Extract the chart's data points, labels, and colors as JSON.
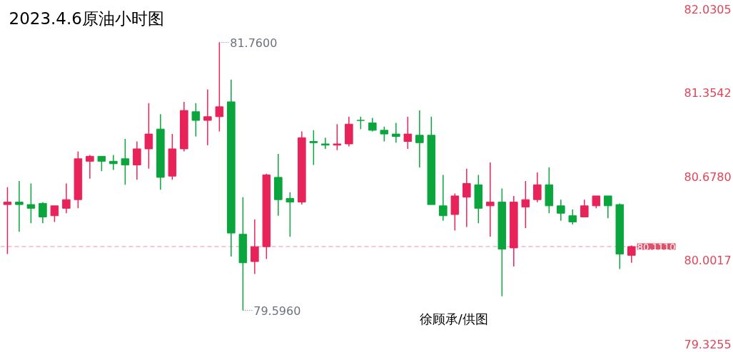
{
  "chart_data": {
    "type": "candlestick",
    "title": "2023.4.6原油小时图",
    "categories": [
      null,
      null,
      null,
      null,
      null,
      null,
      null,
      null,
      null,
      null,
      null,
      null,
      null,
      null,
      null,
      null,
      null,
      null,
      null,
      null,
      null,
      null,
      null,
      null,
      null,
      null,
      null,
      null,
      null,
      null,
      null,
      null,
      null,
      null,
      null,
      null,
      null,
      null,
      null,
      null,
      null,
      null,
      null,
      null,
      null,
      null,
      null,
      null,
      null,
      null,
      null,
      null,
      null,
      null
    ],
    "ohlc": [
      [
        80.45,
        80.59,
        80.05,
        80.47
      ],
      [
        80.47,
        80.64,
        80.23,
        80.45
      ],
      [
        80.45,
        80.62,
        80.3,
        80.42
      ],
      [
        80.46,
        80.47,
        80.3,
        80.35
      ],
      [
        80.36,
        80.44,
        80.31,
        80.44
      ],
      [
        80.42,
        80.62,
        80.38,
        80.49
      ],
      [
        80.49,
        80.88,
        80.42,
        80.82
      ],
      [
        80.8,
        80.85,
        80.66,
        80.84
      ],
      [
        80.84,
        80.84,
        80.72,
        80.8
      ],
      [
        80.8,
        80.85,
        80.73,
        80.78
      ],
      [
        80.82,
        80.98,
        80.61,
        80.77
      ],
      [
        80.77,
        80.96,
        80.65,
        80.9
      ],
      [
        80.9,
        81.27,
        80.74,
        81.02
      ],
      [
        81.06,
        81.18,
        80.57,
        80.67
      ],
      [
        80.68,
        81.02,
        80.65,
        80.9
      ],
      [
        80.9,
        81.28,
        80.88,
        81.21
      ],
      [
        81.2,
        81.27,
        81.0,
        81.13
      ],
      [
        81.13,
        81.38,
        80.93,
        81.16
      ],
      [
        81.16,
        81.76,
        81.04,
        81.24
      ],
      [
        81.28,
        81.46,
        80.03,
        80.22
      ],
      [
        80.21,
        80.51,
        79.596,
        79.98
      ],
      [
        79.99,
        80.33,
        79.89,
        80.11
      ],
      [
        80.11,
        80.7,
        80.01,
        80.69
      ],
      [
        80.67,
        80.86,
        80.36,
        80.49
      ],
      [
        80.5,
        80.55,
        80.19,
        80.47
      ],
      [
        80.47,
        81.04,
        80.45,
        80.99
      ],
      [
        80.96,
        81.05,
        80.77,
        80.95
      ],
      [
        80.94,
        80.99,
        80.9,
        80.93
      ],
      [
        80.93,
        81.1,
        80.89,
        80.94
      ],
      [
        80.94,
        81.16,
        80.92,
        81.1
      ],
      [
        81.13,
        81.16,
        81.06,
        81.13
      ],
      [
        81.11,
        81.15,
        81.04,
        81.05
      ],
      [
        81.05,
        81.08,
        80.96,
        81.02
      ],
      [
        81.02,
        81.11,
        80.95,
        81.0
      ],
      [
        80.96,
        81.16,
        80.9,
        81.02
      ],
      [
        81.01,
        81.21,
        80.75,
        80.95
      ],
      [
        81.01,
        81.16,
        80.45,
        80.45
      ],
      [
        80.44,
        80.69,
        80.32,
        80.36
      ],
      [
        80.37,
        80.54,
        80.24,
        80.52
      ],
      [
        80.51,
        80.74,
        80.27,
        80.62
      ],
      [
        80.61,
        80.69,
        80.3,
        80.42
      ],
      [
        80.44,
        80.79,
        80.19,
        80.47
      ],
      [
        80.47,
        80.58,
        79.71,
        80.09
      ],
      [
        80.1,
        80.52,
        79.95,
        80.47
      ],
      [
        80.43,
        80.64,
        80.26,
        80.49
      ],
      [
        80.49,
        80.71,
        80.47,
        80.61
      ],
      [
        80.61,
        80.75,
        80.38,
        80.44
      ],
      [
        80.44,
        80.49,
        80.32,
        80.38
      ],
      [
        80.36,
        80.41,
        80.29,
        80.31
      ],
      [
        80.35,
        80.49,
        80.35,
        80.44
      ],
      [
        80.44,
        80.52,
        80.42,
        80.52
      ],
      [
        80.52,
        80.52,
        80.34,
        80.44
      ],
      [
        80.45,
        80.46,
        79.93,
        80.05
      ],
      [
        80.04,
        80.12,
        79.98,
        80.111
      ]
    ],
    "colors": [
      "#e8235a",
      "#0aa53c",
      "#0aa53c",
      "#0aa53c",
      "#e8235a",
      "#e8235a",
      "#e8235a",
      "#e8235a",
      "#0aa53c",
      "#0aa53c",
      "#0aa53c",
      "#e8235a",
      "#e8235a",
      "#0aa53c",
      "#e8235a",
      "#e8235a",
      "#0aa53c",
      "#e8235a",
      "#e8235a",
      "#0aa53c",
      "#0aa53c",
      "#e8235a",
      "#e8235a",
      "#0aa53c",
      "#0aa53c",
      "#e8235a",
      "#0aa53c",
      "#0aa53c",
      "#e8235a",
      "#e8235a",
      "#0aa53c",
      "#0aa53c",
      "#0aa53c",
      "#0aa53c",
      "#e8235a",
      "#0aa53c",
      "#0aa53c",
      "#0aa53c",
      "#e8235a",
      "#e8235a",
      "#0aa53c",
      "#e8235a",
      "#0aa53c",
      "#e8235a",
      "#e8235a",
      "#e8235a",
      "#0aa53c",
      "#0aa53c",
      "#0aa53c",
      "#e8235a",
      "#e8235a",
      "#0aa53c",
      "#0aa53c",
      "#e8235a"
    ],
    "ylim": [
      79.3255,
      82.0305
    ],
    "yticks": [
      {
        "value": 79.3255,
        "label": "79.3255"
      },
      {
        "value": 80.0017,
        "label": "80.0017"
      },
      {
        "value": 80.678,
        "label": "80.6780"
      },
      {
        "value": 81.3542,
        "label": "81.3542"
      },
      {
        "value": 82.0305,
        "label": "82.0305"
      }
    ],
    "ref_lines": [
      {
        "axis": "y",
        "value": 80.111,
        "label": "80.1110",
        "color": "#e0506a",
        "line_style": "dashed"
      }
    ],
    "annotations": [
      "81.7600",
      "79.5960",
      "徐顾承/供图"
    ],
    "grid": false,
    "tick_labels": "y"
  }
}
